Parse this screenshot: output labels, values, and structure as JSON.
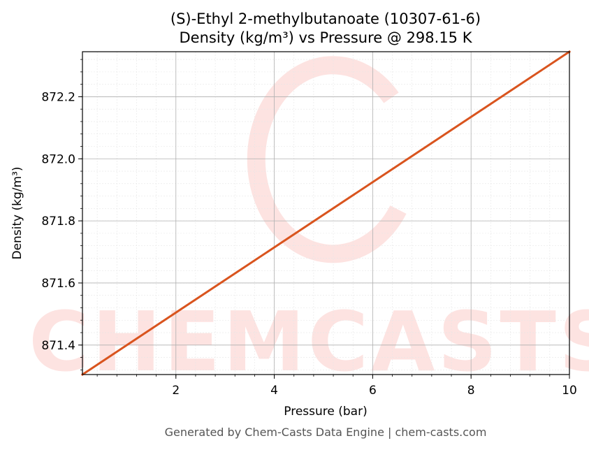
{
  "chart_data": {
    "type": "line",
    "title": "(S)-Ethyl 2-methylbutanoate (10307-61-6)",
    "subtitle": "Density (kg/m³) vs Pressure @ 298.15 K",
    "xlabel": "Pressure (bar)",
    "ylabel": "Density (kg/m³)",
    "xlim": [
      0.1,
      10
    ],
    "ylim": [
      871.305,
      872.345
    ],
    "x_ticks": [
      2,
      4,
      6,
      8,
      10
    ],
    "x_tick_labels": [
      "2",
      "4",
      "6",
      "8",
      "10"
    ],
    "y_ticks": [
      871.4,
      871.6,
      871.8,
      872.0,
      872.2
    ],
    "y_tick_labels": [
      "871.4",
      "871.6",
      "871.8",
      "872.0",
      "872.2"
    ],
    "grid": true,
    "series": [
      {
        "color": "#d9541e",
        "x": [
          0.1,
          10
        ],
        "y": [
          871.305,
          872.345
        ]
      }
    ]
  },
  "footer": "Generated by Chem-Casts Data Engine | chem-casts.com",
  "watermark": "CHEMCASTS"
}
